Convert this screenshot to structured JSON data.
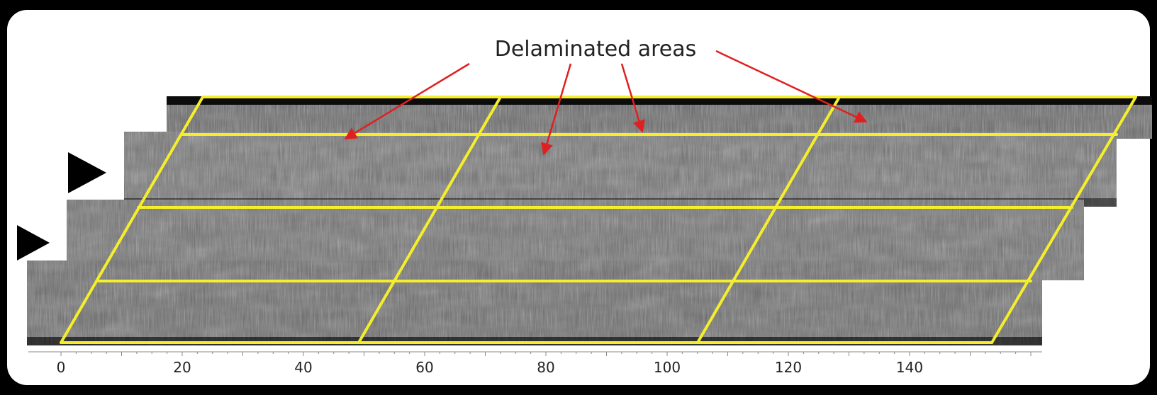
{
  "annotation": {
    "label": "Delaminated areas"
  },
  "axis": {
    "tick_labels": [
      "0",
      "20",
      "40",
      "60",
      "80",
      "100",
      "120",
      "140"
    ]
  },
  "colors": {
    "frame": "#000000",
    "canvas": "#ffffff",
    "grid_lines": "#f4ee2c",
    "arrows": "#e02020",
    "markers": "#000000",
    "text": "#222222"
  },
  "markers": [
    {
      "name": "scan-start-marker-upper"
    },
    {
      "name": "scan-start-marker-lower"
    }
  ]
}
